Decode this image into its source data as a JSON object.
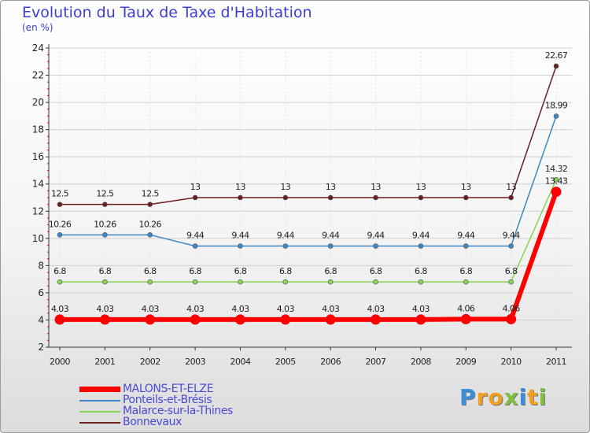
{
  "chart_data": {
    "type": "line",
    "title": "Evolution du Taux de Taxe d'Habitation",
    "subtitle": "(en %)",
    "xlabel": "",
    "ylabel": "",
    "ylim": [
      2,
      24
    ],
    "yticks": [
      2,
      4,
      6,
      8,
      10,
      12,
      14,
      16,
      18,
      20,
      22,
      24
    ],
    "categories": [
      "2000",
      "2001",
      "2002",
      "2003",
      "2004",
      "2005",
      "2006",
      "2007",
      "2008",
      "2009",
      "2010",
      "2011"
    ],
    "series": [
      {
        "name": "Bonnevaux",
        "color": "#6b1f1f",
        "values": [
          12.5,
          12.5,
          12.5,
          13,
          13,
          13,
          13,
          13,
          13,
          13,
          13,
          22.67
        ],
        "labels": [
          "12.5",
          "12.5",
          "12.5",
          "13",
          "13",
          "13",
          "13",
          "13",
          "13",
          "13",
          "13",
          "22.67"
        ]
      },
      {
        "name": "Ponteils-et-Brésis",
        "color": "#3f88c5",
        "values": [
          10.26,
          10.26,
          10.26,
          9.44,
          9.44,
          9.44,
          9.44,
          9.44,
          9.44,
          9.44,
          9.44,
          18.99
        ],
        "labels": [
          "10.26",
          "10.26",
          "10.26",
          "9.44",
          "9.44",
          "9.44",
          "9.44",
          "9.44",
          "9.44",
          "9.44",
          "9.44",
          "18.99"
        ]
      },
      {
        "name": "Malarce-sur-la-Thines",
        "color": "#88d455",
        "values": [
          6.8,
          6.8,
          6.8,
          6.8,
          6.8,
          6.8,
          6.8,
          6.8,
          6.8,
          6.8,
          6.8,
          14.32
        ],
        "labels": [
          "6.8",
          "6.8",
          "6.8",
          "6.8",
          "6.8",
          "6.8",
          "6.8",
          "6.8",
          "6.8",
          "6.8",
          "6.8",
          "14.32"
        ]
      },
      {
        "name": "MALONS-ET-ELZE",
        "color": "#ff0000",
        "values": [
          4.03,
          4.03,
          4.03,
          4.03,
          4.03,
          4.03,
          4.03,
          4.03,
          4.03,
          4.06,
          4.06,
          13.43
        ],
        "labels": [
          "4.03",
          "4.03",
          "4.03",
          "4.03",
          "4.03",
          "4.03",
          "4.03",
          "4.03",
          "4.03",
          "4.06",
          "4.06",
          "13.43"
        ]
      }
    ],
    "legend": {
      "placement": "bottom-left",
      "order": [
        "MALONS-ET-ELZE",
        "Ponteils-et-Brésis",
        "Malarce-sur-la-Thines",
        "Bonnevaux"
      ]
    }
  },
  "branding": {
    "logo_letters": [
      "P",
      "r",
      "o",
      "x",
      "i",
      "t",
      "i"
    ],
    "logo_colors": [
      "#3a8fd8",
      "#f0a020",
      "#f0a020",
      "#80c040",
      "#3a8fd8",
      "#f0a020",
      "#80c040"
    ]
  },
  "colors": {
    "title": "#3d3dd6",
    "axis": "#333333",
    "grid": "#d0d0d0"
  }
}
